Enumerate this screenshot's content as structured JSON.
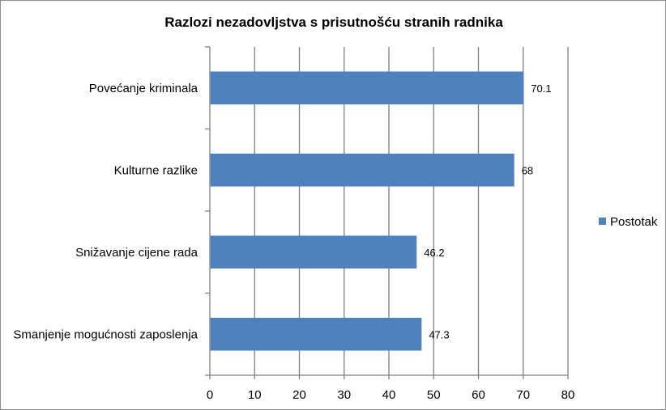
{
  "chart_data": {
    "type": "bar",
    "orientation": "horizontal",
    "title": "Razlozi nezadovljstva s prisutnošću stranih radnika",
    "categories": [
      "Povećanje kriminala",
      "Kulturne razlike",
      "Snižavanje cijene rada",
      "Smanjenje mogućnosti zaposlenja"
    ],
    "series": [
      {
        "name": "Postotak",
        "values": [
          70.1,
          68,
          46.2,
          47.3
        ]
      }
    ],
    "data_labels": [
      "70.1",
      "68",
      "46.2",
      "47.3"
    ],
    "xlim": [
      0,
      80
    ],
    "x_ticks": [
      "0",
      "10",
      "20",
      "30",
      "40",
      "50",
      "60",
      "70",
      "80"
    ],
    "grid": true,
    "legend_position": "right",
    "bar_color": "#4f81bd"
  }
}
